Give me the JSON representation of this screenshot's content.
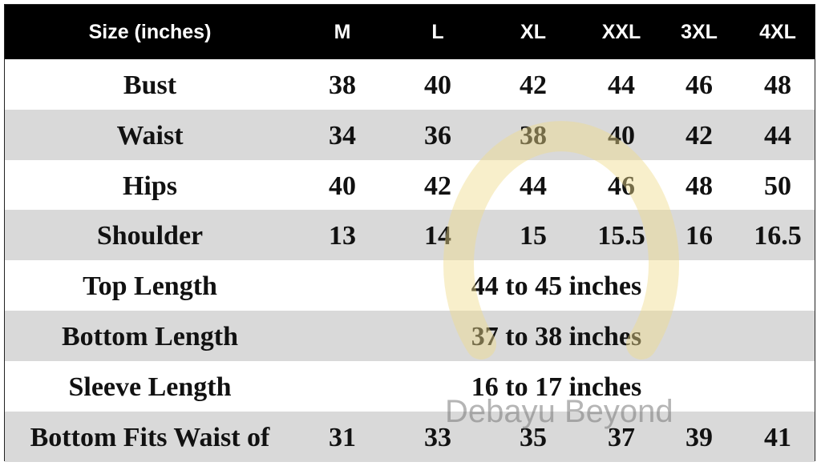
{
  "header": {
    "label": "Size (inches)",
    "sizes": [
      "M",
      "L",
      "XL",
      "XXL",
      "3XL",
      "4XL"
    ]
  },
  "rows": [
    {
      "label": "Bust",
      "values": [
        "38",
        "40",
        "42",
        "44",
        "46",
        "48"
      ]
    },
    {
      "label": "Waist",
      "values": [
        "34",
        "36",
        "38",
        "40",
        "42",
        "44"
      ]
    },
    {
      "label": "Hips",
      "values": [
        "40",
        "42",
        "44",
        "46",
        "48",
        "50"
      ]
    },
    {
      "label": "Shoulder",
      "values": [
        "13",
        "14",
        "15",
        "15.5",
        "16",
        "16.5"
      ]
    },
    {
      "label": "Top Length",
      "span": "44 to 45 inches"
    },
    {
      "label": "Bottom Length",
      "span": "37 to 38 inches"
    },
    {
      "label": "Sleeve Length",
      "span": "16 to 17 inches"
    },
    {
      "label": "Bottom Fits Waist of",
      "values": [
        "31",
        "33",
        "35",
        "37",
        "39",
        "41"
      ]
    }
  ],
  "watermark": {
    "text": "Debayu Beyond",
    "ring_color": "#f0dc8c"
  },
  "colors": {
    "header_bg": "#000000",
    "stripe": "#d9d9d9"
  }
}
